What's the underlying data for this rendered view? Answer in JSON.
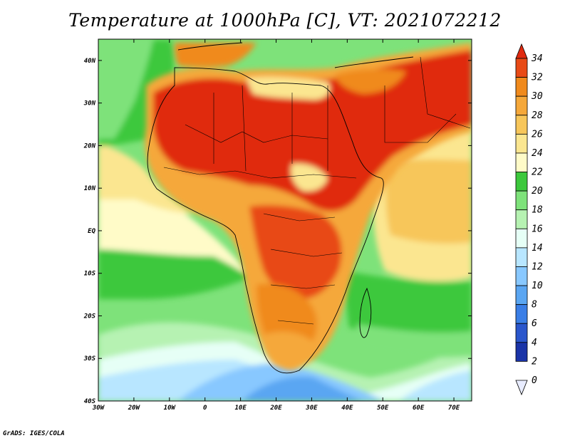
{
  "title": "Temperature at 1000hPa [C], VT: 2021072212",
  "credit": "GrADS: IGES/COLA",
  "map": {
    "lon_labels": [
      "30W",
      "20W",
      "10W",
      "0",
      "10E",
      "20E",
      "30E",
      "40E",
      "50E",
      "60E",
      "70E"
    ],
    "lat_labels": [
      "40N",
      "30N",
      "20N",
      "10N",
      "EQ",
      "10S",
      "20S",
      "30S",
      "40S"
    ],
    "lon_range": [
      -30,
      75
    ],
    "lat_range": [
      -40,
      45
    ]
  },
  "colorbar": {
    "labels": [
      "34",
      "32",
      "30",
      "28",
      "26",
      "24",
      "22",
      "20",
      "18",
      "16",
      "14",
      "12",
      "10",
      "8",
      "6",
      "4",
      "2",
      "0"
    ],
    "colors": [
      "#e02a10",
      "#e84a16",
      "#f08a1c",
      "#f5a83a",
      "#f7c65a",
      "#fbe690",
      "#fffbc8",
      "#3cc83c",
      "#7ee27a",
      "#b6f2b2",
      "#e6fff6",
      "#b8e6ff",
      "#88c8ff",
      "#5aa6f2",
      "#3a7ee6",
      "#2a56cc",
      "#1a34a8",
      "#0a1c80"
    ]
  }
}
